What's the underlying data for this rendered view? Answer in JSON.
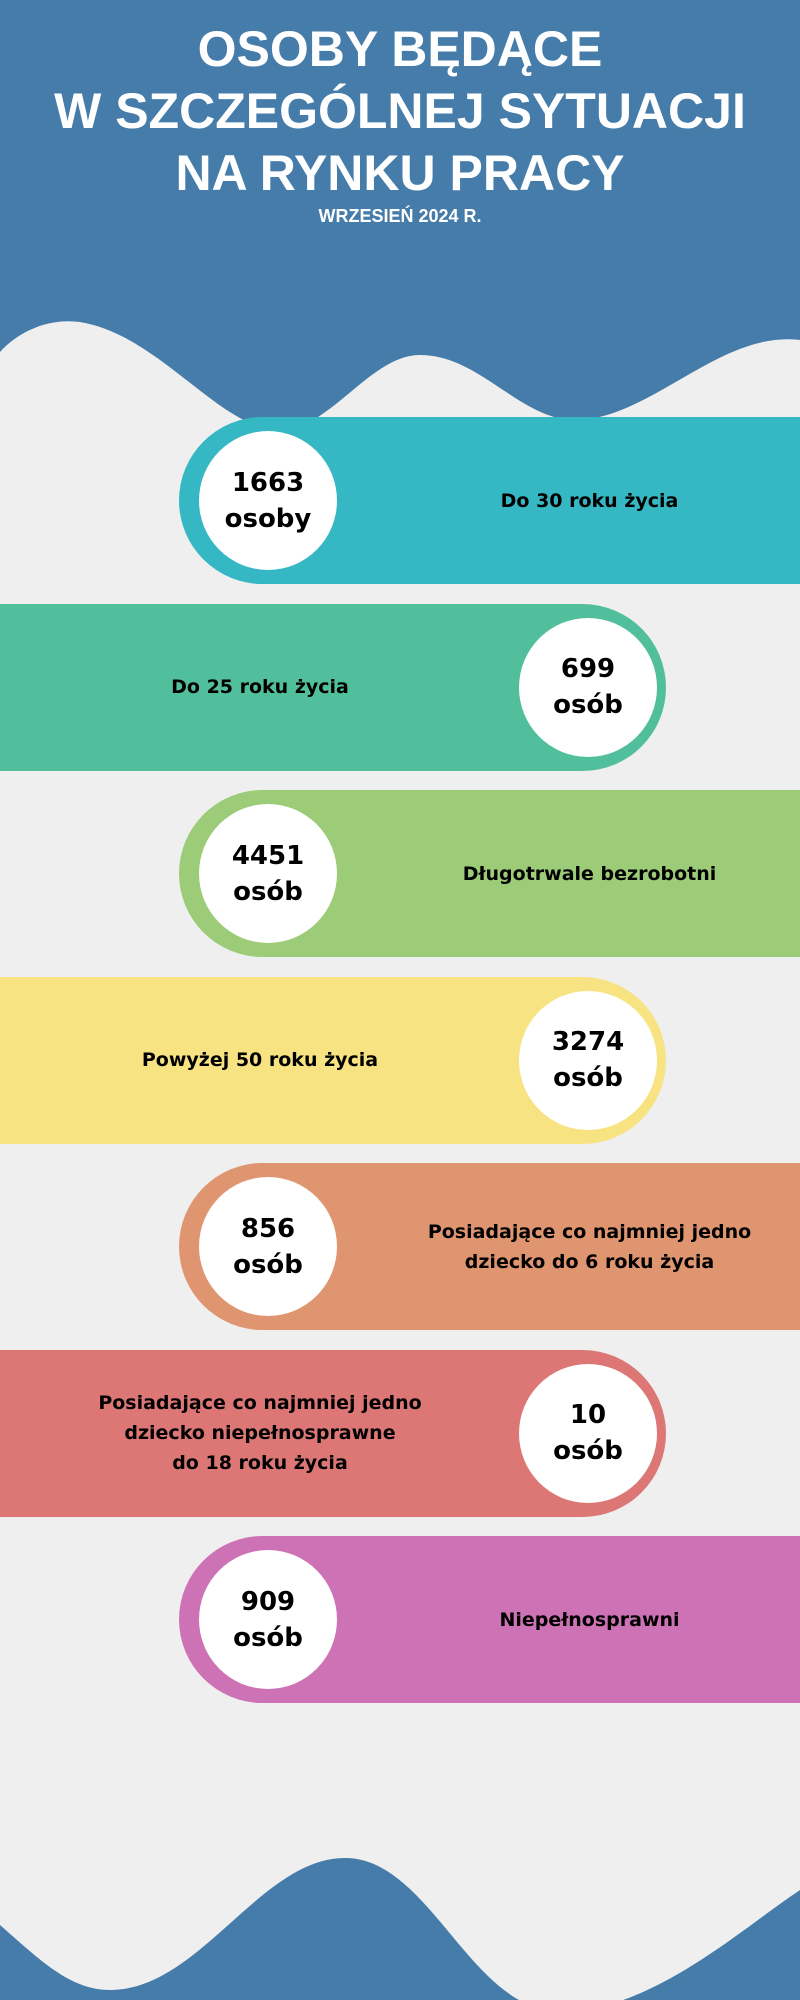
{
  "header": {
    "title_lines": [
      "OSOBY BĘDĄCE",
      "W SZCZEGÓLNEJ SYTUACJI",
      "NA RYNKU PRACY"
    ],
    "subtitle": "WRZESIEŃ 2024 R."
  },
  "colors": {
    "background": "#efefef",
    "wave": "#457ca9"
  },
  "items": [
    {
      "number": "1663",
      "unit": "osoby",
      "label": "Do 30 roku życia",
      "color": "#36b8c4",
      "side": "left"
    },
    {
      "number": "699",
      "unit": "osób",
      "label": "Do 25 roku życia",
      "color": "#52bf9c",
      "side": "right"
    },
    {
      "number": "4451",
      "unit": "osób",
      "label": "Długotrwale bezrobotni",
      "color": "#9dcc78",
      "side": "left"
    },
    {
      "number": "3274",
      "unit": "osób",
      "label": "Powyżej 50 roku życia",
      "color": "#f8e383",
      "side": "right"
    },
    {
      "number": "856",
      "unit": "osób",
      "label": "Posiadające co najmniej jedno\ndziecko do 6 roku życia",
      "color": "#e09571",
      "side": "left"
    },
    {
      "number": "10",
      "unit": "osób",
      "label": "Posiadające co najmniej jedno\ndziecko niepełnosprawne\ndo 18 roku życia",
      "color": "#dc7776",
      "side": "right"
    },
    {
      "number": "909",
      "unit": "osób",
      "label": "Niepełnosprawni",
      "color": "#cd72b4",
      "side": "left"
    }
  ]
}
